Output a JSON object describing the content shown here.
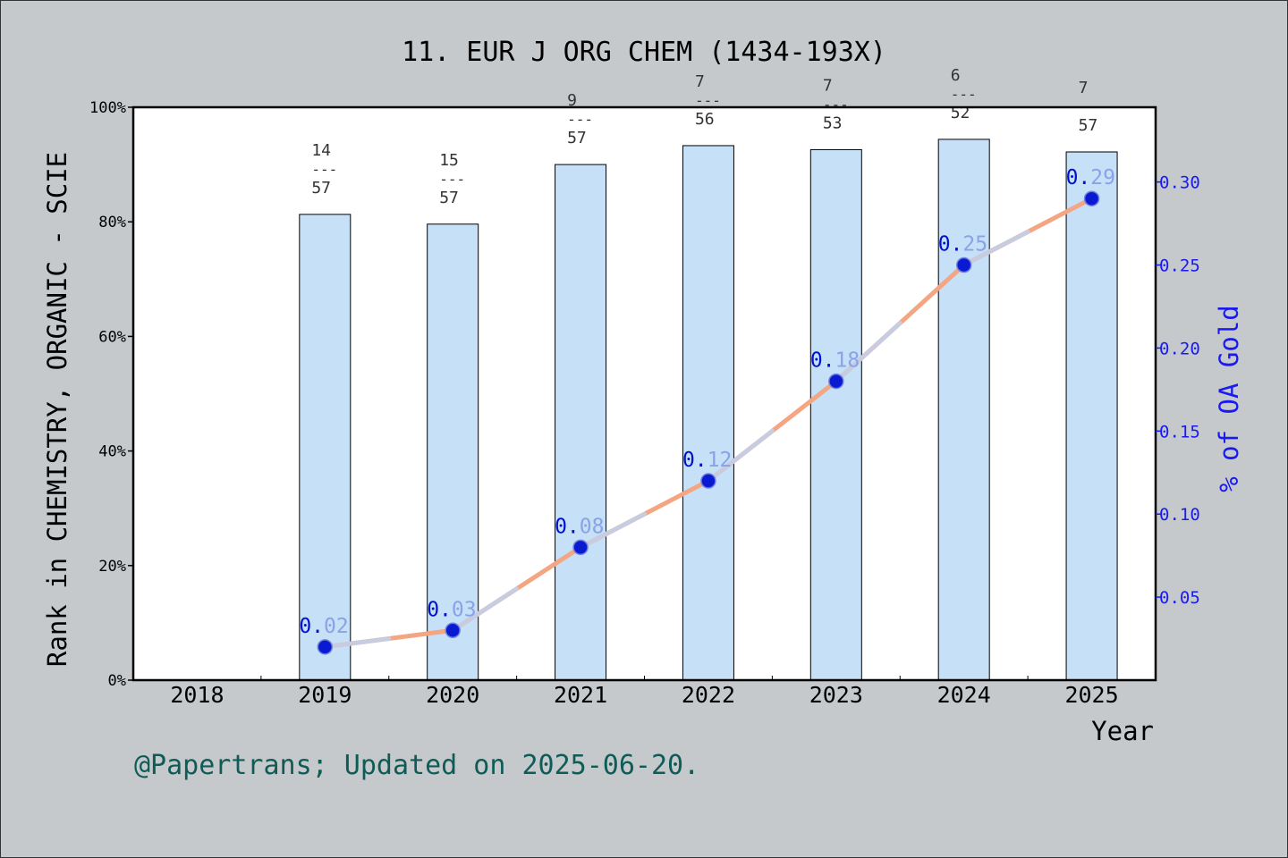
{
  "chart_data": {
    "type": "bar+line",
    "title": "11. EUR J ORG CHEM (1434-193X)",
    "xlabel": "Year",
    "ylabel": "Rank in CHEMISTRY, ORGANIC - SCIE",
    "y2label": "% of OA Gold",
    "footer": "@Papertrans; Updated on 2025-06-20.",
    "categories": [
      "2018",
      "2019",
      "2020",
      "2021",
      "2022",
      "2023",
      "2024",
      "2025"
    ],
    "ylim": [
      0,
      100
    ],
    "y_ticks": [
      "0%",
      "20%",
      "40%",
      "60%",
      "80%",
      "100%"
    ],
    "y2lim": [
      0,
      0.345
    ],
    "y2_ticks": [
      "0.05",
      "0.10",
      "0.15",
      "0.20",
      "0.25",
      "0.30"
    ],
    "bars": [
      {
        "year": "2019",
        "value": 81.3,
        "rank": "14",
        "total": "57",
        "sep": "---"
      },
      {
        "year": "2020",
        "value": 79.6,
        "rank": "15",
        "total": "57",
        "sep": "---"
      },
      {
        "year": "2021",
        "value": 90.0,
        "rank": "9",
        "total": "57",
        "sep": "---"
      },
      {
        "year": "2022",
        "value": 93.3,
        "rank": "7",
        "total": "56",
        "sep": "---"
      },
      {
        "year": "2023",
        "value": 92.6,
        "rank": "7",
        "total": "53",
        "sep": "---"
      },
      {
        "year": "2024",
        "value": 94.4,
        "rank": "6",
        "total": "52",
        "sep": "---"
      },
      {
        "year": "2025",
        "value": 92.2,
        "rank": "7",
        "total": "57",
        "sep": "---"
      }
    ],
    "series": [
      {
        "x": [
          "2019",
          "2020",
          "2021",
          "2022",
          "2023",
          "2024",
          "2025"
        ],
        "values": [
          0.02,
          0.03,
          0.08,
          0.12,
          0.18,
          0.25,
          0.29
        ],
        "labels": [
          {
            "a": "0.",
            "b": "02"
          },
          {
            "a": "0.",
            "b": "03"
          },
          {
            "a": "0.",
            "b": "08"
          },
          {
            "a": "0.",
            "b": "12"
          },
          {
            "a": "0.",
            "b": "18"
          },
          {
            "a": "0.",
            "b": "25"
          },
          {
            "a": "0.",
            "b": "29"
          }
        ]
      }
    ],
    "grid": false,
    "colors": {
      "background": "#c5c9cc",
      "plot": "#ffffff",
      "bar": "#c6e0f7",
      "line": "#f4a582",
      "line_highlight": "#c8cce0",
      "marker": "#0a1ad0",
      "label_dark": "#0010cc",
      "label_light": "#8aa2e6",
      "right_axis": "#1a1aee",
      "footer": "#0f5c57"
    }
  }
}
